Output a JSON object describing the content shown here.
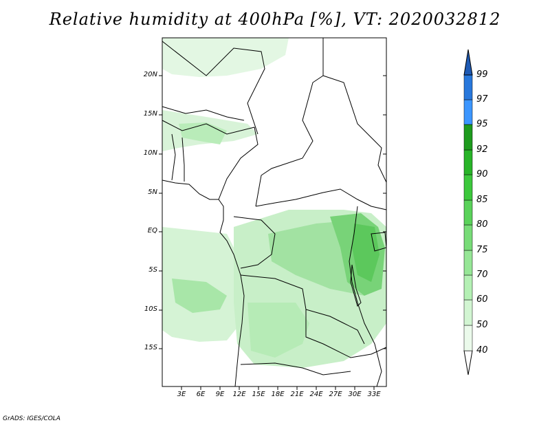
{
  "title": "Relative humidity at 400hPa [%], VT: 2020032812",
  "credit": "GrADS: IGES/COLA",
  "map": {
    "lat_labels": [
      "20N",
      "15N",
      "10N",
      "5N",
      "EQ",
      "5S",
      "10S",
      "15S"
    ],
    "lon_labels": [
      "3E",
      "6E",
      "9E",
      "12E",
      "15E",
      "18E",
      "21E",
      "24E",
      "27E",
      "30E",
      "33E"
    ],
    "region": "Central and West Africa",
    "lon_range": [
      0,
      35
    ],
    "lat_range": [
      -20,
      25
    ]
  },
  "colorbar": {
    "levels": [
      "40",
      "50",
      "60",
      "70",
      "75",
      "80",
      "85",
      "90",
      "92",
      "95",
      "97",
      "99"
    ],
    "colors": [
      "#ebfaeb",
      "#d2f5d2",
      "#b4f0b4",
      "#96e696",
      "#78dc78",
      "#5ad25a",
      "#3cc83c",
      "#28b428",
      "#1e9b1e",
      "#3c96ff",
      "#2878dc",
      "#1e5ab4"
    ]
  }
}
